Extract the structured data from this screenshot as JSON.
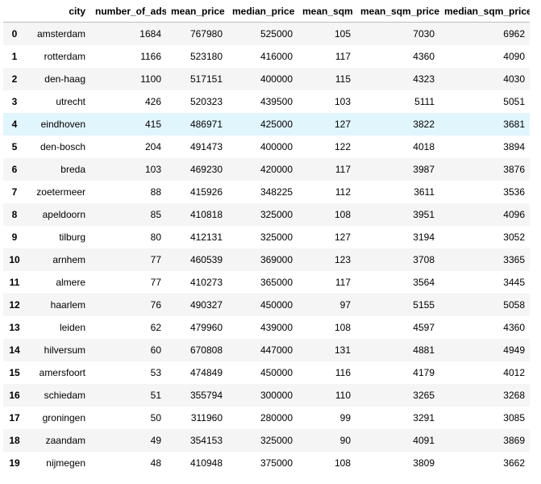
{
  "table": {
    "headers": [
      "",
      "city",
      "number_of_ads",
      "mean_price",
      "median_price",
      "mean_sqm",
      "mean_sqm_price",
      "median_sqm_price"
    ],
    "hover_row": 4,
    "rows": [
      {
        "index": "0",
        "cells": [
          "amsterdam",
          "1684",
          "767980",
          "525000",
          "105",
          "7030",
          "6962"
        ]
      },
      {
        "index": "1",
        "cells": [
          "rotterdam",
          "1166",
          "523180",
          "416000",
          "117",
          "4360",
          "4090"
        ]
      },
      {
        "index": "2",
        "cells": [
          "den-haag",
          "1100",
          "517151",
          "400000",
          "115",
          "4323",
          "4030"
        ]
      },
      {
        "index": "3",
        "cells": [
          "utrecht",
          "426",
          "520323",
          "439500",
          "103",
          "5111",
          "5051"
        ]
      },
      {
        "index": "4",
        "cells": [
          "eindhoven",
          "415",
          "486971",
          "425000",
          "127",
          "3822",
          "3681"
        ]
      },
      {
        "index": "5",
        "cells": [
          "den-bosch",
          "204",
          "491473",
          "400000",
          "122",
          "4018",
          "3894"
        ]
      },
      {
        "index": "6",
        "cells": [
          "breda",
          "103",
          "469230",
          "420000",
          "117",
          "3987",
          "3876"
        ]
      },
      {
        "index": "7",
        "cells": [
          "zoetermeer",
          "88",
          "415926",
          "348225",
          "112",
          "3611",
          "3536"
        ]
      },
      {
        "index": "8",
        "cells": [
          "apeldoorn",
          "85",
          "410818",
          "325000",
          "108",
          "3951",
          "4096"
        ]
      },
      {
        "index": "9",
        "cells": [
          "tilburg",
          "80",
          "412131",
          "325000",
          "127",
          "3194",
          "3052"
        ]
      },
      {
        "index": "10",
        "cells": [
          "arnhem",
          "77",
          "460539",
          "369000",
          "123",
          "3708",
          "3365"
        ]
      },
      {
        "index": "11",
        "cells": [
          "almere",
          "77",
          "410273",
          "365000",
          "117",
          "3564",
          "3445"
        ]
      },
      {
        "index": "12",
        "cells": [
          "haarlem",
          "76",
          "490327",
          "450000",
          "97",
          "5155",
          "5058"
        ]
      },
      {
        "index": "13",
        "cells": [
          "leiden",
          "62",
          "479960",
          "439000",
          "108",
          "4597",
          "4360"
        ]
      },
      {
        "index": "14",
        "cells": [
          "hilversum",
          "60",
          "670808",
          "447000",
          "131",
          "4881",
          "4949"
        ]
      },
      {
        "index": "15",
        "cells": [
          "amersfoort",
          "53",
          "474849",
          "450000",
          "116",
          "4179",
          "4012"
        ]
      },
      {
        "index": "16",
        "cells": [
          "schiedam",
          "51",
          "355794",
          "300000",
          "110",
          "3265",
          "3268"
        ]
      },
      {
        "index": "17",
        "cells": [
          "groningen",
          "50",
          "311960",
          "280000",
          "99",
          "3291",
          "3085"
        ]
      },
      {
        "index": "18",
        "cells": [
          "zaandam",
          "49",
          "354153",
          "325000",
          "90",
          "4091",
          "3869"
        ]
      },
      {
        "index": "19",
        "cells": [
          "nijmegen",
          "48",
          "410948",
          "375000",
          "108",
          "3809",
          "3662"
        ]
      }
    ]
  }
}
